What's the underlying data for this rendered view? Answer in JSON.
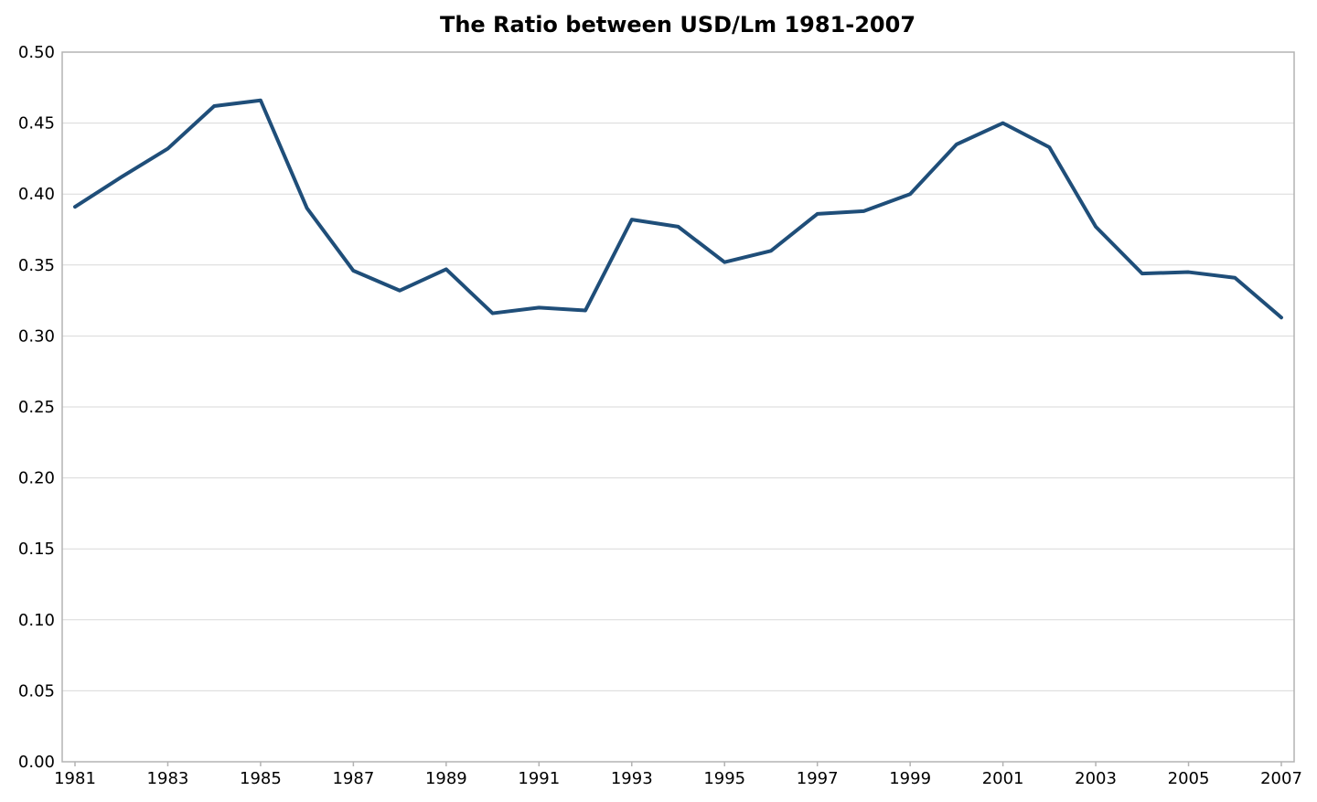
{
  "chart_data": {
    "type": "line",
    "title": "The Ratio between USD/Lm 1981-2007",
    "xlabel": "",
    "ylabel": "",
    "x": [
      1981,
      1982,
      1983,
      1984,
      1985,
      1986,
      1987,
      1988,
      1989,
      1990,
      1991,
      1992,
      1993,
      1994,
      1995,
      1996,
      1997,
      1998,
      1999,
      2000,
      2001,
      2002,
      2003,
      2004,
      2005,
      2006,
      2007
    ],
    "series": [
      {
        "values": [
          0.391,
          0.412,
          0.432,
          0.462,
          0.466,
          0.39,
          0.346,
          0.332,
          0.347,
          0.316,
          0.32,
          0.318,
          0.382,
          0.377,
          0.352,
          0.36,
          0.386,
          0.388,
          0.4,
          0.435,
          0.45,
          0.433,
          0.377,
          0.344,
          0.345,
          0.341,
          0.313
        ],
        "color": "#1f4e79"
      }
    ],
    "xlim": [
      1981,
      2007
    ],
    "ylim": [
      0,
      0.5
    ],
    "x_ticks": [
      "1981",
      "1983",
      "1985",
      "1987",
      "1989",
      "1991",
      "1993",
      "1995",
      "1997",
      "1999",
      "2001",
      "2003",
      "2005",
      "2007"
    ],
    "y_ticks": [
      "0.00",
      "0.05",
      "0.10",
      "0.15",
      "0.20",
      "0.25",
      "0.30",
      "0.35",
      "0.40",
      "0.45",
      "0.50"
    ],
    "grid": "horizontal",
    "legend": "none"
  }
}
